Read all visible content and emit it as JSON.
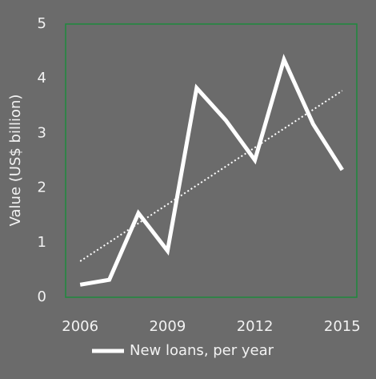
{
  "chart_data": {
    "type": "line",
    "y_label": "Value (US$ billion)",
    "x": [
      2006,
      2007,
      2008,
      2009,
      2010,
      2011,
      2012,
      2013,
      2014,
      2015
    ],
    "series": [
      {
        "name": "New loans, per year",
        "color": "#ffffff",
        "values": [
          0.23,
          0.32,
          1.54,
          0.85,
          3.83,
          3.24,
          2.51,
          4.35,
          3.17,
          2.33
        ]
      }
    ],
    "trendline": {
      "x": [
        2006,
        2015
      ],
      "values": [
        0.66,
        3.78
      ],
      "color": "#ffffff",
      "style": "dotted"
    },
    "xlim": [
      2005.5,
      2015.5
    ],
    "xticks": [
      2006,
      2009,
      2012,
      2015
    ],
    "ylim": [
      0,
      5
    ],
    "yticks": [
      0,
      1,
      2,
      3,
      4,
      5
    ],
    "frame_color": "#1e8a3c",
    "legend": "bottom"
  }
}
